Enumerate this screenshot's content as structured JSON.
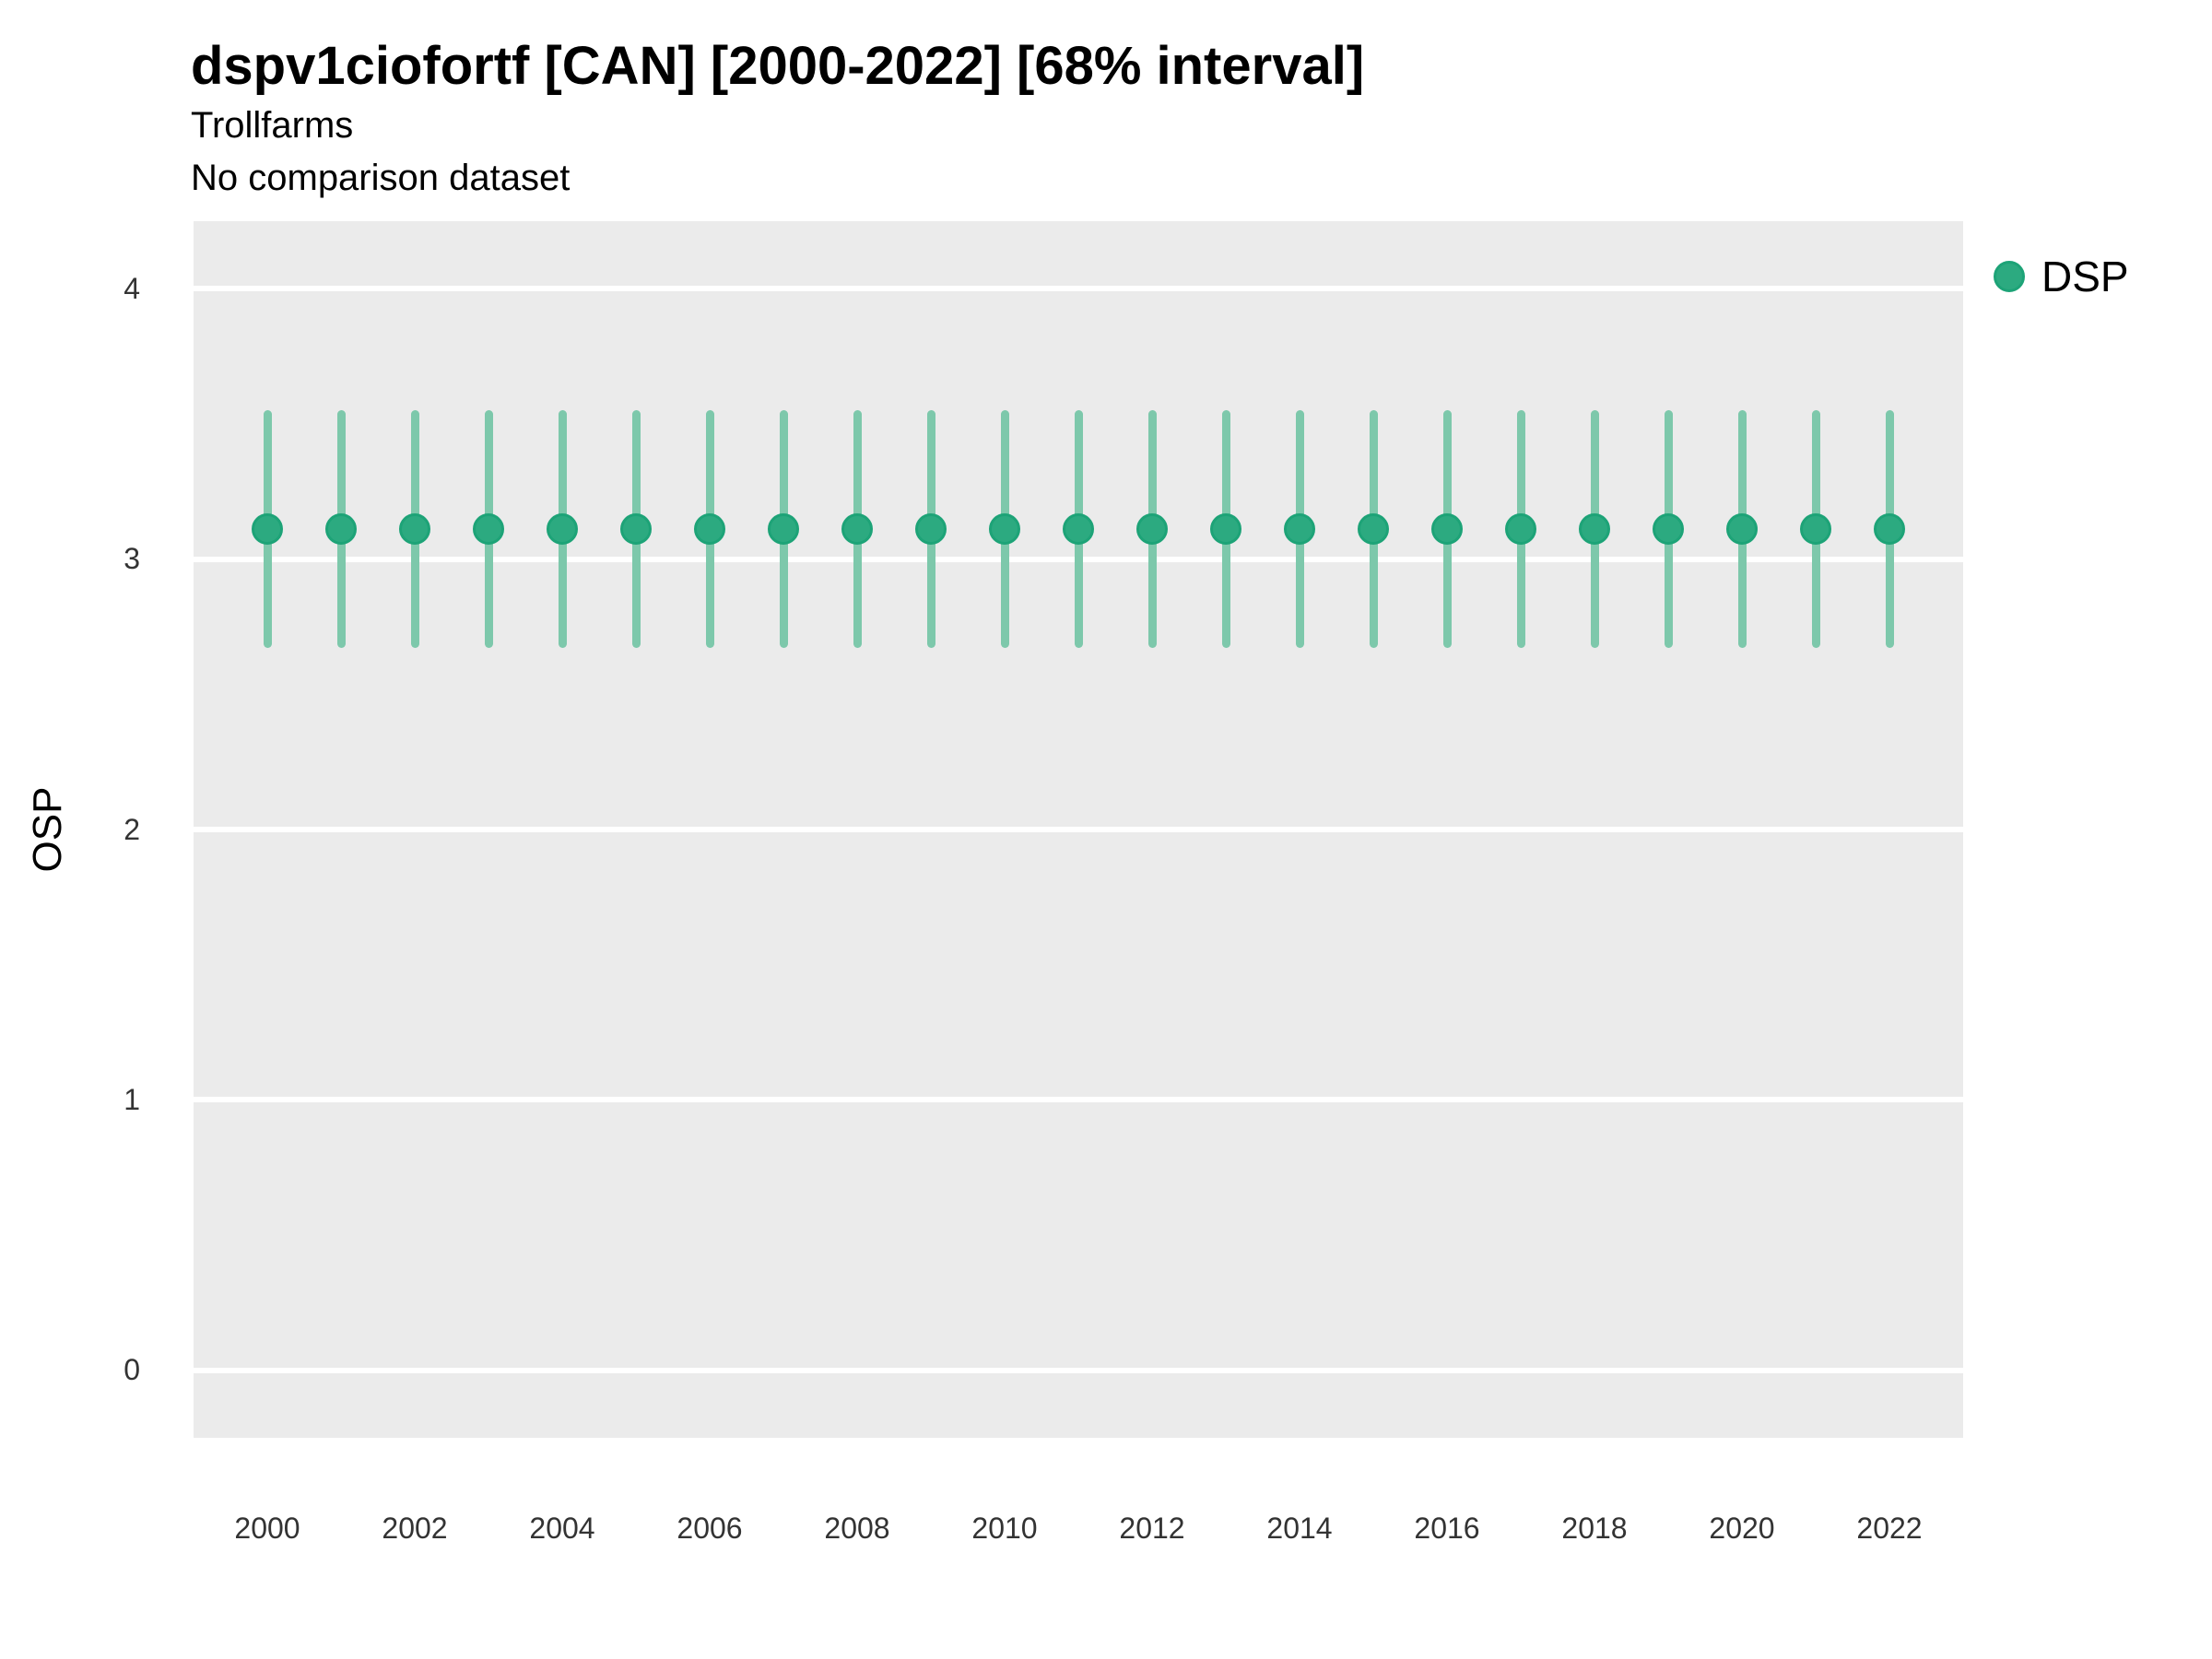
{
  "header": {
    "title": "dspv1ciofortf [CAN] [2000-2022] [68% interval]",
    "subtitle_line1": "Trollfarms",
    "subtitle_line2": "No comparison dataset"
  },
  "legend": {
    "label": "DSP",
    "position": "right"
  },
  "axes": {
    "y_label": "OSP",
    "x_label": ""
  },
  "colors": {
    "point": "#2caa80",
    "point_border": "#1da377",
    "interval_bar": "#7dc8ab",
    "panel_background": "#ebebeb",
    "gridline": "#ffffff",
    "title_text": "#000000",
    "tick_text": "#333333"
  },
  "chart_data": {
    "type": "scatter",
    "title": "dspv1ciofortf [CAN] [2000-2022] [68% interval]",
    "subtitle": "Trollfarms",
    "note": "No comparison dataset",
    "xlabel": "",
    "ylabel": "OSP",
    "ylim": [
      -0.25,
      4.25
    ],
    "xlim": [
      1999,
      2023
    ],
    "yticks": [
      0,
      1,
      2,
      3,
      4
    ],
    "xticks": [
      2000,
      2002,
      2004,
      2006,
      2008,
      2010,
      2012,
      2014,
      2016,
      2018,
      2020,
      2022
    ],
    "grid": "horizontal-major-only",
    "legend_position": "right",
    "series": [
      {
        "name": "DSP",
        "x": [
          2000,
          2001,
          2002,
          2003,
          2004,
          2005,
          2006,
          2007,
          2008,
          2009,
          2010,
          2011,
          2012,
          2013,
          2014,
          2015,
          2016,
          2017,
          2018,
          2019,
          2020,
          2021,
          2022
        ],
        "y": [
          3.11,
          3.11,
          3.11,
          3.11,
          3.11,
          3.11,
          3.11,
          3.11,
          3.11,
          3.11,
          3.11,
          3.11,
          3.11,
          3.11,
          3.11,
          3.11,
          3.11,
          3.11,
          3.11,
          3.11,
          3.11,
          3.11,
          3.11
        ],
        "lo": [
          2.67,
          2.67,
          2.67,
          2.67,
          2.67,
          2.67,
          2.67,
          2.67,
          2.67,
          2.67,
          2.67,
          2.67,
          2.67,
          2.67,
          2.67,
          2.67,
          2.67,
          2.67,
          2.67,
          2.67,
          2.67,
          2.67,
          2.67
        ],
        "hi": [
          3.55,
          3.55,
          3.55,
          3.55,
          3.55,
          3.55,
          3.55,
          3.55,
          3.55,
          3.55,
          3.55,
          3.55,
          3.55,
          3.55,
          3.55,
          3.55,
          3.55,
          3.55,
          3.55,
          3.55,
          3.55,
          3.55,
          3.55
        ]
      }
    ]
  }
}
